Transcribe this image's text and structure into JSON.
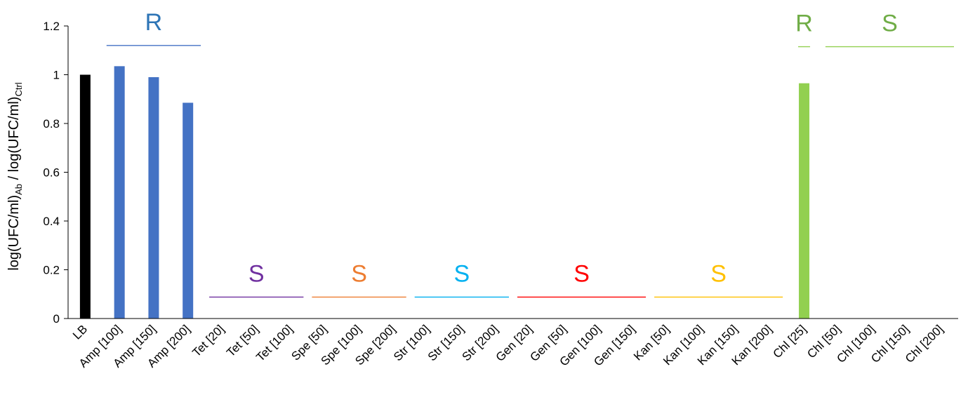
{
  "chart_data": {
    "type": "bar",
    "ylabel": {
      "parts": [
        {
          "text": "log(UFC/ml)",
          "sub": false
        },
        {
          "text": "Ab",
          "sub": true
        },
        {
          "text": " / log(UFC/ml)",
          "sub": false
        },
        {
          "text": "Ctrl",
          "sub": true
        }
      ]
    },
    "xlabel": "",
    "ylim": [
      0,
      1.2
    ],
    "yticks": [
      "0",
      "0.2",
      "0.4",
      "0.6",
      "0.8",
      "1",
      "1.2"
    ],
    "yticks_values": [
      0,
      0.2,
      0.4,
      0.6,
      0.8,
      1.0,
      1.2
    ],
    "grid": false,
    "legend": "none",
    "categories": [
      "LB",
      "Amp [100]",
      "Amp [150]",
      "Amp [200]",
      "Tet [20]",
      "Tet [50]",
      "Tet [100]",
      "Spe [50]",
      "Spe [100]",
      "Spe [200]",
      "Str [100]",
      "Str [150]",
      "Str [200]",
      "Gen [20]",
      "Gen [50]",
      "Gen [100]",
      "Gen [150]",
      "Kan [50]",
      "Kan [100]",
      "Kan [150]",
      "Kan [200]",
      "Chl [25]",
      "Chl [50]",
      "Chl [100]",
      "Chl [150]",
      "Chl [200]"
    ],
    "values": [
      1.0,
      1.035,
      0.99,
      0.885,
      0,
      0,
      0,
      0,
      0,
      0,
      0,
      0,
      0,
      0,
      0,
      0,
      0,
      0,
      0,
      0,
      0,
      0.965,
      0,
      0,
      0,
      0
    ],
    "bar_colors": [
      "#000000",
      "#4472C4",
      "#4472C4",
      "#4472C4",
      "#4472C4",
      "#4472C4",
      "#4472C4",
      "#4472C4",
      "#4472C4",
      "#4472C4",
      "#4472C4",
      "#4472C4",
      "#4472C4",
      "#4472C4",
      "#4472C4",
      "#4472C4",
      "#4472C4",
      "#4472C4",
      "#4472C4",
      "#4472C4",
      "#4472C4",
      "#92D050",
      "#92D050",
      "#92D050",
      "#92D050",
      "#92D050"
    ],
    "annotations": [
      {
        "text": "R",
        "from": 1,
        "to": 3,
        "y": 1.12,
        "color": "#2E75B6",
        "line_color": "#4472C4"
      },
      {
        "text": "S",
        "from": 4,
        "to": 6,
        "y": 0.088,
        "color": "#7030A0",
        "line_color": "#7030A0"
      },
      {
        "text": "S",
        "from": 7,
        "to": 9,
        "y": 0.088,
        "color": "#ED7D31",
        "line_color": "#ED7D31"
      },
      {
        "text": "S",
        "from": 10,
        "to": 12,
        "y": 0.088,
        "color": "#00B0F0",
        "line_color": "#00B0F0"
      },
      {
        "text": "S",
        "from": 13,
        "to": 16,
        "y": 0.088,
        "color": "#FF0000",
        "line_color": "#FF0000"
      },
      {
        "text": "S",
        "from": 17,
        "to": 20,
        "y": 0.088,
        "color": "#FFC000",
        "line_color": "#FFC000"
      },
      {
        "text": "R",
        "from": 21,
        "to": 21,
        "y": 1.115,
        "color": "#70AD47",
        "line_color": "#92D050"
      },
      {
        "text": "S",
        "from": 22,
        "to": 25,
        "y": 1.115,
        "color": "#70AD47",
        "line_color": "#92D050"
      }
    ]
  }
}
